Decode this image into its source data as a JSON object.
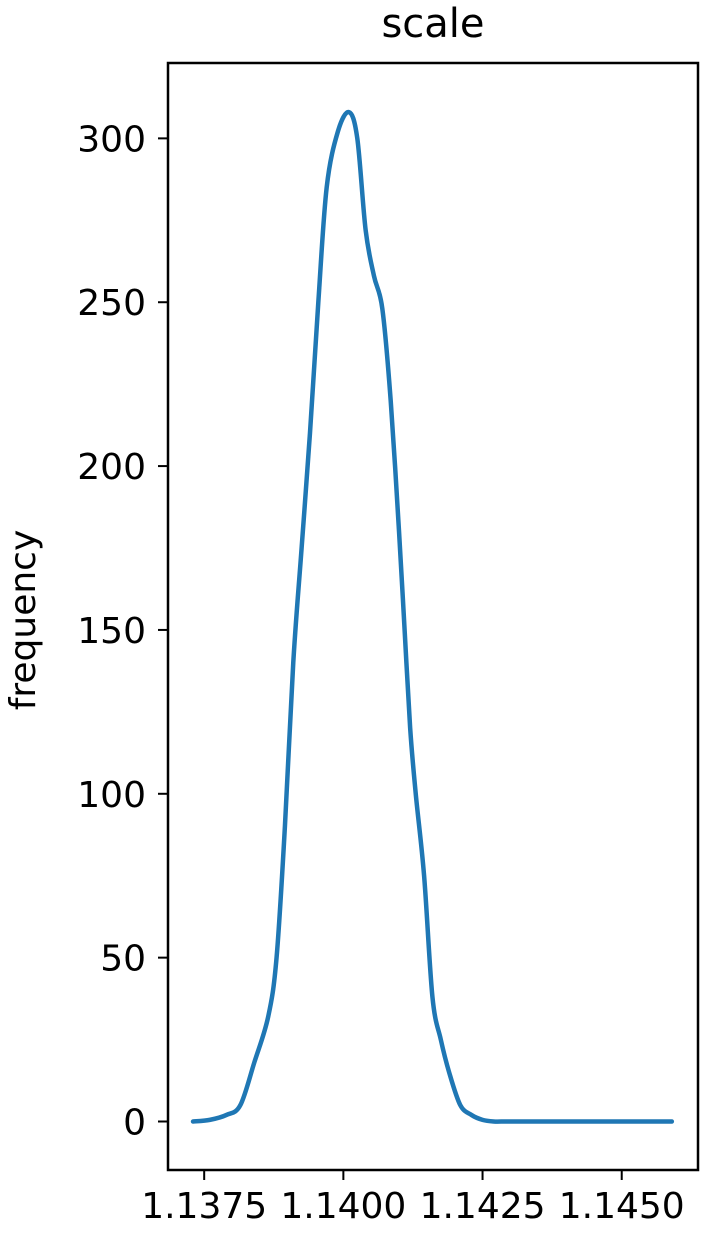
{
  "chart_data": {
    "type": "line",
    "title": "scale",
    "xlabel": "",
    "ylabel": "frequency",
    "xlim": [
      1.13685,
      1.14637
    ],
    "ylim": [
      -14.8,
      323.0
    ],
    "xticks": [
      1.1375,
      1.14,
      1.1425,
      1.145
    ],
    "xtick_labels": [
      "1.1375",
      "1.1400",
      "1.1425",
      "1.1450"
    ],
    "yticks": [
      0,
      50,
      100,
      150,
      200,
      250,
      300
    ],
    "ytick_labels": [
      "0",
      "50",
      "100",
      "150",
      "200",
      "250",
      "300"
    ],
    "grid": false,
    "legend": "none",
    "series": [
      {
        "color": "#1f77b4",
        "x": [
          1.1373,
          1.1376,
          1.1379,
          1.13815,
          1.1384,
          1.13865,
          1.1388,
          1.13895,
          1.1391,
          1.13925,
          1.1394,
          1.13955,
          1.1397,
          1.1399,
          1.1401,
          1.14025,
          1.1404,
          1.14055,
          1.1407,
          1.14085,
          1.141,
          1.1411,
          1.1412,
          1.1413,
          1.14145,
          1.1416,
          1.14175,
          1.1419,
          1.1421,
          1.1423,
          1.1425,
          1.1427,
          1.1429,
          1.1431,
          1.1433,
          1.14345,
          1.1436,
          1.14375,
          1.1439,
          1.1441,
          1.1444,
          1.1448,
          1.1453,
          1.1459
        ],
        "y": [
          0,
          0.5,
          2,
          5,
          18,
          32,
          50,
          90,
          140,
          175,
          210,
          250,
          285,
          302,
          308,
          300,
          272,
          258,
          248,
          220,
          180,
          150,
          120,
          100,
          75,
          38,
          25,
          15,
          5,
          2,
          0.5,
          0,
          0,
          0,
          0,
          0,
          0,
          0,
          0,
          0,
          0,
          0,
          0,
          0
        ]
      }
    ]
  }
}
